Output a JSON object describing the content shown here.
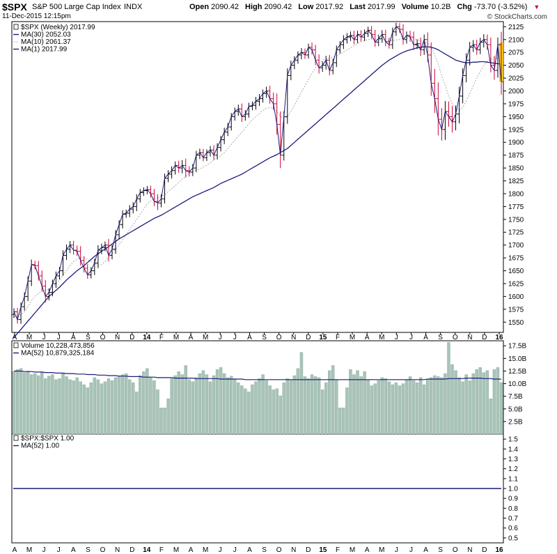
{
  "header": {
    "symbol": "$SPX",
    "name": "S&P 500 Large Cap Index",
    "exchange": "INDX",
    "date": "11-Dec-2015 12:15pm",
    "brand": "© StockCharts.com",
    "quote": [
      {
        "label": "Open",
        "value": "2090.42"
      },
      {
        "label": "High",
        "value": "2090.42"
      },
      {
        "label": "Low",
        "value": "2017.92"
      },
      {
        "label": "Last",
        "value": "2017.99"
      },
      {
        "label": "Volume",
        "value": "10.2B"
      },
      {
        "label": "Chg",
        "value": "-73.70 (-3.52%)"
      }
    ],
    "chg_arrow": "▼"
  },
  "colors": {
    "price": "#000000",
    "up": "#000000",
    "down": "#cc0033",
    "ma30": "#1a1a7a",
    "ma10": "#aaaaaa",
    "ma1": "#1a1a7a",
    "volume": "#a8c4b8",
    "volume_edge": "#8aa89c",
    "highlight": "#f5c400"
  },
  "chart_data": [
    {
      "type": "ohlc",
      "legend": [
        {
          "symbol": "box-icon",
          "text": "$SPX (Weekly) 2017.99"
        },
        {
          "symbol": "line-icon",
          "text": "MA(30) 2052.03"
        },
        {
          "symbol": "dot-line-icon",
          "text": "MA(10) 2061.37"
        },
        {
          "symbol": "line-icon",
          "text": "MA(1) 2017.99"
        }
      ],
      "ylim": [
        1530,
        2135
      ],
      "yticks": [
        "2125",
        "2100",
        "2075",
        "2050",
        "2025",
        "2000",
        "1975",
        "1950",
        "1925",
        "1900",
        "1875",
        "1850",
        "1825",
        "1800",
        "1775",
        "1750",
        "1725",
        "1700",
        "1675",
        "1650",
        "1625",
        "1600",
        "1575",
        "1550"
      ],
      "close": [
        1570,
        1555,
        1580,
        1600,
        1630,
        1662,
        1660,
        1640,
        1620,
        1600,
        1608,
        1625,
        1640,
        1650,
        1680,
        1692,
        1700,
        1690,
        1688,
        1670,
        1655,
        1642,
        1650,
        1665,
        1690,
        1695,
        1700,
        1680,
        1692,
        1720,
        1740,
        1760,
        1762,
        1770,
        1775,
        1790,
        1802,
        1806,
        1808,
        1800,
        1785,
        1782,
        1790,
        1830,
        1838,
        1845,
        1855,
        1850,
        1855,
        1845,
        1842,
        1850,
        1875,
        1880,
        1870,
        1880,
        1885,
        1875,
        1890,
        1905,
        1920,
        1930,
        1950,
        1960,
        1965,
        1950,
        1955,
        1970,
        1972,
        1980,
        1985,
        1995,
        2000,
        1985,
        1975,
        1935,
        1875,
        1950,
        2030,
        2050,
        2060,
        2070,
        2075,
        2070,
        2085,
        2080,
        2060,
        2045,
        2050,
        2060,
        2040,
        2055,
        2080,
        2090,
        2100,
        2105,
        2108,
        2100,
        2110,
        2105,
        2112,
        2118,
        2110,
        2095,
        2102,
        2110,
        2096,
        2090,
        2115,
        2125,
        2120,
        2100,
        2108,
        2105,
        2090,
        2092,
        2080,
        2100,
        2070,
        2015,
        1985,
        1945,
        1925,
        1960,
        1950,
        1940,
        1955,
        1990,
        2030,
        2060,
        2085,
        2090,
        2080,
        2095,
        2100,
        2090,
        2050,
        2040,
        2090,
        2017.99
      ],
      "ma30": [
        1520,
        1528,
        1536,
        1544,
        1552,
        1560,
        1568,
        1576,
        1584,
        1592,
        1600,
        1606,
        1612,
        1618,
        1625,
        1632,
        1638,
        1644,
        1650,
        1655,
        1660,
        1666,
        1672,
        1678,
        1683,
        1688,
        1692,
        1697,
        1702,
        1707,
        1712,
        1716,
        1720,
        1724,
        1728,
        1732,
        1736,
        1740,
        1744,
        1748,
        1752,
        1755,
        1758,
        1762,
        1766,
        1770,
        1774,
        1778,
        1782,
        1786,
        1790,
        1794,
        1797,
        1800,
        1803,
        1806,
        1809,
        1812,
        1816,
        1820,
        1823,
        1826,
        1829,
        1832,
        1835,
        1838,
        1842,
        1846,
        1850,
        1854,
        1858,
        1862,
        1866,
        1870,
        1873,
        1876,
        1880,
        1884,
        1888,
        1894,
        1900,
        1906,
        1912,
        1918,
        1924,
        1930,
        1936,
        1942,
        1948,
        1954,
        1960,
        1966,
        1972,
        1978,
        1984,
        1990,
        1996,
        2002,
        2008,
        2014,
        2020,
        2026,
        2032,
        2038,
        2044,
        2050,
        2055,
        2060,
        2064,
        2068,
        2072,
        2075,
        2078,
        2080,
        2082,
        2084,
        2085,
        2086,
        2086,
        2085,
        2083,
        2080,
        2076,
        2072,
        2068,
        2064,
        2060,
        2058,
        2056,
        2055,
        2055,
        2056,
        2056,
        2057,
        2057,
        2056,
        2055,
        2054,
        2053,
        2052.03
      ],
      "ma10": [
        1560,
        1562,
        1565,
        1570,
        1580,
        1592,
        1600,
        1606,
        1610,
        1612,
        1614,
        1618,
        1624,
        1632,
        1642,
        1650,
        1660,
        1668,
        1672,
        1676,
        1675,
        1672,
        1668,
        1664,
        1660,
        1662,
        1668,
        1676,
        1684,
        1692,
        1700,
        1710,
        1720,
        1730,
        1740,
        1750,
        1760,
        1770,
        1780,
        1786,
        1790,
        1792,
        1794,
        1798,
        1804,
        1810,
        1816,
        1822,
        1828,
        1834,
        1840,
        1844,
        1846,
        1848,
        1852,
        1856,
        1860,
        1866,
        1870,
        1874,
        1880,
        1888,
        1896,
        1904,
        1912,
        1920,
        1928,
        1936,
        1944,
        1950,
        1956,
        1962,
        1966,
        1968,
        1966,
        1960,
        1950,
        1946,
        1950,
        1960,
        1972,
        1985,
        1998,
        2010,
        2022,
        2034,
        2046,
        2055,
        2060,
        2062,
        2064,
        2066,
        2068,
        2072,
        2076,
        2080,
        2084,
        2088,
        2092,
        2096,
        2098,
        2100,
        2101,
        2101,
        2100,
        2100,
        2099,
        2098,
        2098,
        2099,
        2100,
        2102,
        2103,
        2103,
        2102,
        2100,
        2098,
        2096,
        2094,
        2085,
        2070,
        2052,
        2030,
        2010,
        1990,
        1975,
        1966,
        1962,
        1968,
        1980,
        1995,
        2010,
        2025,
        2038,
        2050,
        2058,
        2062,
        2064,
        2063,
        2061.37
      ],
      "range": [
        20,
        22,
        24,
        22,
        26,
        28,
        22,
        26,
        30,
        34,
        22,
        22,
        24,
        20,
        28,
        26,
        22,
        24,
        26,
        28,
        24,
        22,
        20,
        24,
        28,
        22,
        20,
        34,
        22,
        26,
        24,
        22,
        20,
        22,
        24,
        26,
        20,
        18,
        20,
        22,
        26,
        40,
        24,
        26,
        22,
        24,
        22,
        26,
        30,
        38,
        24,
        22,
        24,
        22,
        20,
        18,
        22,
        26,
        24,
        22,
        24,
        22,
        20,
        22,
        24,
        30,
        22,
        20,
        22,
        24,
        26,
        22,
        24,
        28,
        34,
        58,
        72,
        30,
        40,
        26,
        22,
        20,
        24,
        22,
        20,
        26,
        28,
        32,
        22,
        24,
        28,
        22,
        24,
        20,
        24,
        22,
        22,
        26,
        20,
        24,
        22,
        20,
        24,
        26,
        22,
        24,
        26,
        22,
        24,
        22,
        20,
        28,
        22,
        26,
        30,
        24,
        34,
        28,
        40,
        70,
        80,
        90,
        62,
        58,
        56,
        60,
        48,
        52,
        40,
        38,
        30,
        26,
        28,
        24,
        30,
        28,
        40,
        52,
        40,
        72
      ],
      "highlight_last": true
    },
    {
      "type": "bar",
      "legend": [
        {
          "symbol": "box-icon",
          "text": "Volume 10,228,473,856"
        },
        {
          "symbol": "line-icon",
          "text": "MA(52) 10,879,325,184"
        }
      ],
      "ylim": [
        0,
        18.5
      ],
      "yticks": [
        "17.5B",
        "15.0B",
        "12.5B",
        "10.0B",
        "7.5B",
        "5.0B",
        "2.5B"
      ],
      "values": [
        12.4,
        12.8,
        13.0,
        12.2,
        12.5,
        11.8,
        12.0,
        11.6,
        12.2,
        11.0,
        11.5,
        11.8,
        10.8,
        11.0,
        12.0,
        11.4,
        10.8,
        10.6,
        11.2,
        10.4,
        9.8,
        9.2,
        10.2,
        11.2,
        10.8,
        10.0,
        10.4,
        11.0,
        10.6,
        11.2,
        11.5,
        11.8,
        12.0,
        10.8,
        10.2,
        8.4,
        11.6,
        12.4,
        13.0,
        11.2,
        10.6,
        8.8,
        5.2,
        5.2,
        7.0,
        11.0,
        11.6,
        12.4,
        11.8,
        13.6,
        10.8,
        10.4,
        11.2,
        12.0,
        12.6,
        11.8,
        10.4,
        11.6,
        12.8,
        13.2,
        12.0,
        11.2,
        11.5,
        10.8,
        10.2,
        9.6,
        9.0,
        8.4,
        9.8,
        10.4,
        11.0,
        11.8,
        10.6,
        9.6,
        8.8,
        9.0,
        7.6,
        10.2,
        11.0,
        10.8,
        11.6,
        13.0,
        16.2,
        11.4,
        11.0,
        11.8,
        11.4,
        11.2,
        8.8,
        10.2,
        12.6,
        13.6,
        10.8,
        5.2,
        5.2,
        9.2,
        12.8,
        11.8,
        12.6,
        11.4,
        12.4,
        10.8,
        9.6,
        10.0,
        10.6,
        11.2,
        11.0,
        10.4,
        9.8,
        10.2,
        9.6,
        10.0,
        10.8,
        11.4,
        10.6,
        10.2,
        11.2,
        9.8,
        10.8,
        11.2,
        11.6,
        11.4,
        11.2,
        12.0,
        18.2,
        13.8,
        12.6,
        11.2,
        10.4,
        11.8,
        10.6,
        12.0,
        12.8,
        13.2,
        12.2,
        12.6,
        7.0,
        12.8,
        13.2,
        10.23
      ],
      "ma52": [
        12.5,
        12.5,
        12.5,
        12.4,
        12.4,
        12.4,
        12.3,
        12.3,
        12.3,
        12.2,
        12.2,
        12.2,
        12.1,
        12.1,
        12.1,
        12.0,
        12.0,
        12.0,
        11.9,
        11.9,
        11.9,
        11.8,
        11.8,
        11.8,
        11.7,
        11.7,
        11.7,
        11.6,
        11.6,
        11.6,
        11.5,
        11.5,
        11.5,
        11.4,
        11.4,
        11.4,
        11.4,
        11.3,
        11.3,
        11.3,
        11.3,
        11.2,
        11.2,
        11.2,
        11.2,
        11.2,
        11.1,
        11.1,
        11.1,
        11.1,
        11.1,
        11.1,
        11.0,
        11.0,
        11.0,
        11.0,
        11.0,
        11.0,
        11.0,
        10.9,
        10.9,
        10.9,
        10.9,
        10.9,
        10.9,
        10.9,
        10.8,
        10.8,
        10.8,
        10.8,
        10.8,
        10.8,
        10.8,
        10.8,
        10.8,
        10.8,
        10.8,
        10.8,
        10.8,
        10.8,
        10.8,
        10.8,
        10.8,
        10.8,
        10.8,
        10.8,
        10.8,
        10.8,
        10.8,
        10.8,
        10.8,
        10.8,
        10.8,
        10.8,
        10.8,
        10.8,
        10.8,
        10.8,
        10.8,
        10.8,
        10.8,
        10.8,
        10.8,
        10.8,
        10.8,
        10.8,
        10.8,
        10.8,
        10.8,
        10.8,
        10.8,
        10.8,
        10.8,
        10.8,
        10.8,
        10.8,
        10.8,
        10.8,
        10.9,
        10.9,
        10.9,
        10.9,
        10.9,
        10.9,
        11.0,
        11.0,
        11.0,
        11.0,
        11.0,
        11.1,
        11.1,
        11.1,
        11.1,
        11.1,
        11.0,
        11.0,
        11.0,
        10.9,
        10.9,
        10.88
      ]
    },
    {
      "type": "line",
      "legend": [
        {
          "symbol": "box-icon",
          "text": "$SPX:$SPX 1.00"
        },
        {
          "symbol": "line-icon",
          "text": "MA(52) 1.00"
        }
      ],
      "ylim": [
        0.45,
        1.55
      ],
      "yticks": [
        "1.5",
        "1.4",
        "1.3",
        "1.2",
        "1.1",
        "1.0",
        "0.9",
        "0.8",
        "0.7",
        "0.6",
        "0.5"
      ],
      "value": 1.0
    }
  ],
  "x_axis": [
    {
      "label": "A",
      "bold": false
    },
    {
      "label": "M",
      "bold": false
    },
    {
      "label": "J",
      "bold": false
    },
    {
      "label": "J",
      "bold": false
    },
    {
      "label": "A",
      "bold": false
    },
    {
      "label": "S",
      "bold": false
    },
    {
      "label": "O",
      "bold": false
    },
    {
      "label": "N",
      "bold": false
    },
    {
      "label": "D",
      "bold": false
    },
    {
      "label": "14",
      "bold": true
    },
    {
      "label": "F",
      "bold": false
    },
    {
      "label": "M",
      "bold": false
    },
    {
      "label": "A",
      "bold": false
    },
    {
      "label": "M",
      "bold": false
    },
    {
      "label": "J",
      "bold": false
    },
    {
      "label": "J",
      "bold": false
    },
    {
      "label": "A",
      "bold": false
    },
    {
      "label": "S",
      "bold": false
    },
    {
      "label": "O",
      "bold": false
    },
    {
      "label": "N",
      "bold": false
    },
    {
      "label": "D",
      "bold": false
    },
    {
      "label": "15",
      "bold": true
    },
    {
      "label": "F",
      "bold": false
    },
    {
      "label": "M",
      "bold": false
    },
    {
      "label": "A",
      "bold": false
    },
    {
      "label": "M",
      "bold": false
    },
    {
      "label": "J",
      "bold": false
    },
    {
      "label": "J",
      "bold": false
    },
    {
      "label": "A",
      "bold": false
    },
    {
      "label": "S",
      "bold": false
    },
    {
      "label": "O",
      "bold": false
    },
    {
      "label": "N",
      "bold": false
    },
    {
      "label": "D",
      "bold": false
    },
    {
      "label": "16",
      "bold": true
    }
  ]
}
